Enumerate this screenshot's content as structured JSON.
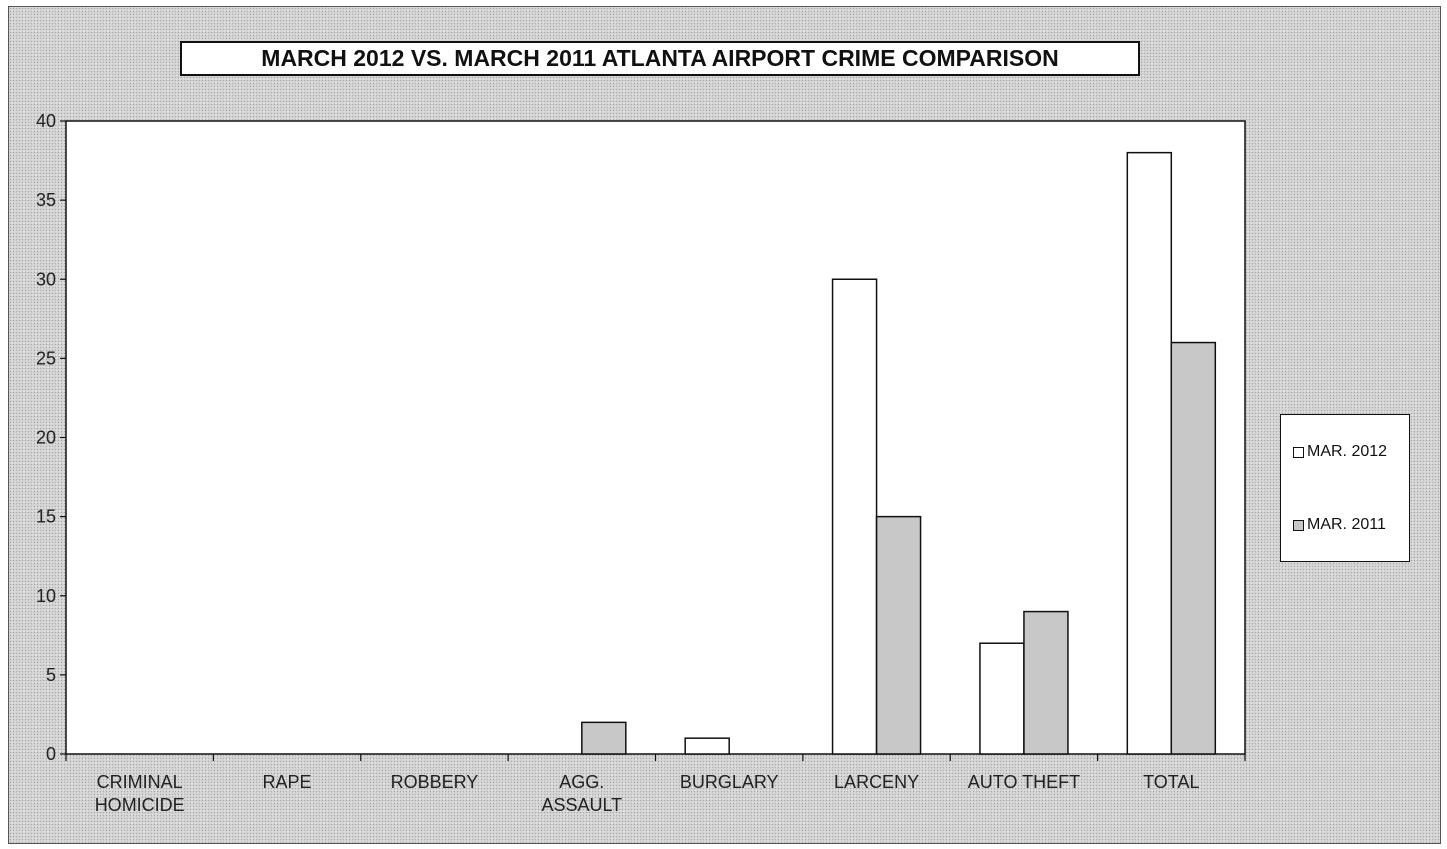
{
  "chart_data": {
    "type": "bar",
    "title": "MARCH 2012 VS. MARCH 2011 ATLANTA AIRPORT CRIME COMPARISON",
    "categories": [
      [
        "CRIMINAL",
        "HOMICIDE"
      ],
      [
        "RAPE"
      ],
      [
        "ROBBERY"
      ],
      [
        "AGG.",
        "ASSAULT"
      ],
      [
        "BURGLARY"
      ],
      [
        "LARCENY"
      ],
      [
        "AUTO THEFT"
      ],
      [
        "TOTAL"
      ]
    ],
    "series": [
      {
        "name": "MAR. 2012",
        "values": [
          0,
          0,
          0,
          0,
          1,
          30,
          7,
          38
        ],
        "color": "#ffffff"
      },
      {
        "name": "MAR. 2011",
        "values": [
          0,
          0,
          0,
          2,
          0,
          15,
          9,
          26
        ],
        "color": "#c8c8c8"
      }
    ],
    "ylim": [
      0,
      40
    ],
    "yticks": [
      "0",
      "5",
      "10",
      "15",
      "20",
      "25",
      "30",
      "35",
      "40"
    ],
    "grid": false,
    "legend_position": "right"
  }
}
